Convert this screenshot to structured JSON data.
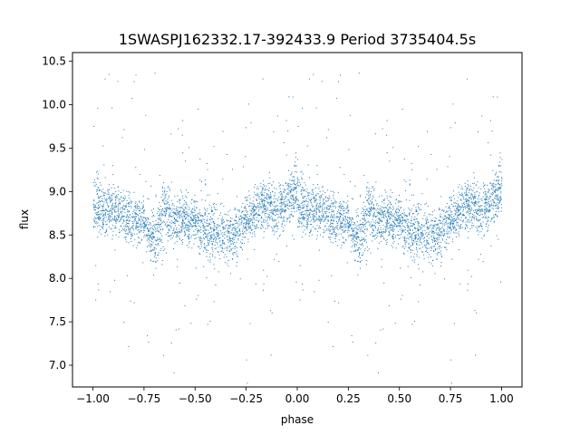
{
  "chart_data": {
    "type": "scatter",
    "title": "1SWASPJ162332.17-392433.9 Period 3735404.5s",
    "xlabel": "phase",
    "ylabel": "flux",
    "xlim": [
      -1.1,
      1.1
    ],
    "ylim": [
      6.75,
      10.6
    ],
    "grid": false,
    "legend": "none",
    "point_color": "#1f77b4",
    "xticks": [
      {
        "value": -1.0,
        "label": "−1.00"
      },
      {
        "value": -0.75,
        "label": "−0.75"
      },
      {
        "value": -0.5,
        "label": "−0.50"
      },
      {
        "value": -0.25,
        "label": "−0.25"
      },
      {
        "value": 0.0,
        "label": "0.00"
      },
      {
        "value": 0.25,
        "label": "0.25"
      },
      {
        "value": 0.5,
        "label": "0.50"
      },
      {
        "value": 0.75,
        "label": "0.75"
      },
      {
        "value": 1.0,
        "label": "1.00"
      }
    ],
    "yticks": [
      {
        "value": 7.0,
        "label": "7.0"
      },
      {
        "value": 7.5,
        "label": "7.5"
      },
      {
        "value": 8.0,
        "label": "8.0"
      },
      {
        "value": 8.5,
        "label": "8.5"
      },
      {
        "value": 9.0,
        "label": "9.0"
      },
      {
        "value": 9.5,
        "label": "9.5"
      },
      {
        "value": 10.0,
        "label": "10.0"
      },
      {
        "value": 10.5,
        "label": "10.5"
      }
    ],
    "light_curve_profile": [
      {
        "phase": 0.0,
        "median": 8.95,
        "spread": 0.35
      },
      {
        "phase": 0.05,
        "median": 8.75,
        "spread": 0.28
      },
      {
        "phase": 0.1,
        "median": 8.8,
        "spread": 0.3
      },
      {
        "phase": 0.15,
        "median": 8.75,
        "spread": 0.28
      },
      {
        "phase": 0.2,
        "median": 8.7,
        "spread": 0.28
      },
      {
        "phase": 0.25,
        "median": 8.65,
        "spread": 0.22
      },
      {
        "phase": 0.3,
        "median": 8.4,
        "spread": 0.32
      },
      {
        "phase": 0.35,
        "median": 8.8,
        "spread": 0.35
      },
      {
        "phase": 0.4,
        "median": 8.65,
        "spread": 0.28
      },
      {
        "phase": 0.45,
        "median": 8.7,
        "spread": 0.28
      },
      {
        "phase": 0.5,
        "median": 8.65,
        "spread": 0.28
      },
      {
        "phase": 0.55,
        "median": 8.55,
        "spread": 0.3
      },
      {
        "phase": 0.6,
        "median": 8.55,
        "spread": 0.3
      },
      {
        "phase": 0.65,
        "median": 8.5,
        "spread": 0.32
      },
      {
        "phase": 0.7,
        "median": 8.5,
        "spread": 0.32
      },
      {
        "phase": 0.75,
        "median": 8.7,
        "spread": 0.28
      },
      {
        "phase": 0.8,
        "median": 8.8,
        "spread": 0.28
      },
      {
        "phase": 0.85,
        "median": 8.85,
        "spread": 0.28
      },
      {
        "phase": 0.9,
        "median": 8.8,
        "spread": 0.3
      },
      {
        "phase": 0.95,
        "median": 8.9,
        "spread": 0.3
      },
      {
        "phase": 1.0,
        "median": 9.1,
        "spread": 0.35
      }
    ]
  }
}
